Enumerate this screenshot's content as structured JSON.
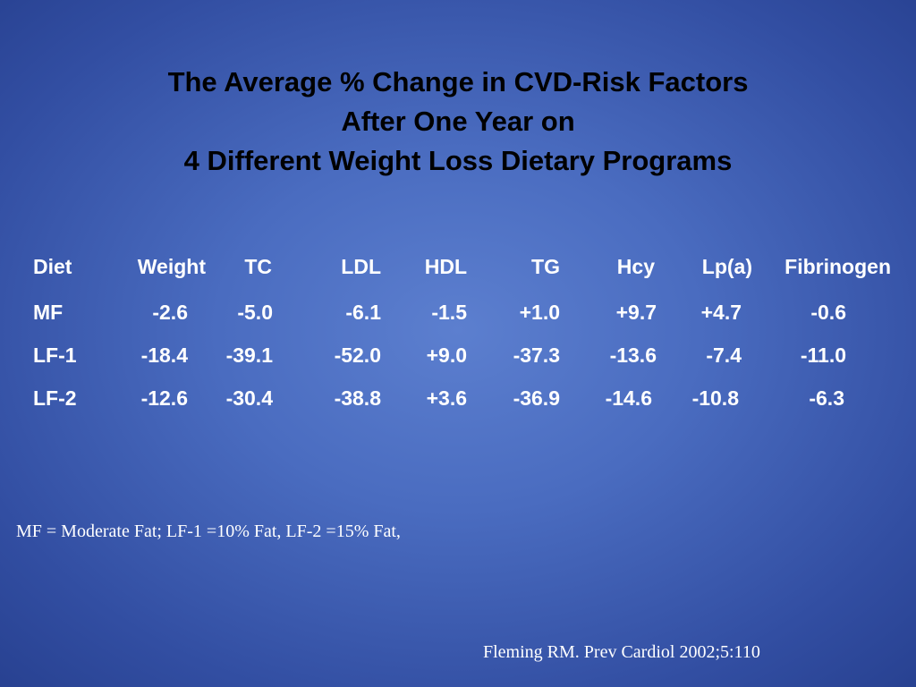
{
  "title": {
    "line1": "The Average % Change in CVD-Risk Factors",
    "line2": "After One Year on",
    "line3": "4 Different Weight Loss Dietary Programs"
  },
  "table": {
    "headers": [
      "Diet",
      "Weight",
      "TC",
      "LDL",
      "HDL",
      "TG",
      "Hcy",
      "Lp(a)",
      "Fibrinogen"
    ],
    "rows": [
      [
        "MF",
        "-2.6",
        "-5.0",
        "-6.1",
        "-1.5",
        "+1.0",
        "+9.7",
        "+4.7",
        "-0.6"
      ],
      [
        "LF-1",
        "-18.4",
        "-39.1",
        "-52.0",
        "+9.0",
        "-37.3",
        "-13.6",
        "-7.4",
        "-11.0"
      ],
      [
        "LF-2",
        "-12.6",
        "-30.4",
        "-38.8",
        "+3.6",
        "-36.9",
        "-14.6",
        "-10.8",
        "-6.3"
      ]
    ]
  },
  "footnote": "MF = Moderate Fat; LF-1 =10% Fat, LF-2 =15% Fat,",
  "citation": "Fleming RM. Prev Cardiol 2002;5:110",
  "colors": {
    "background_center": "#5c7fcf",
    "background_edge": "#263f8e",
    "title_text": "#000000",
    "table_text": "#ffffff"
  }
}
